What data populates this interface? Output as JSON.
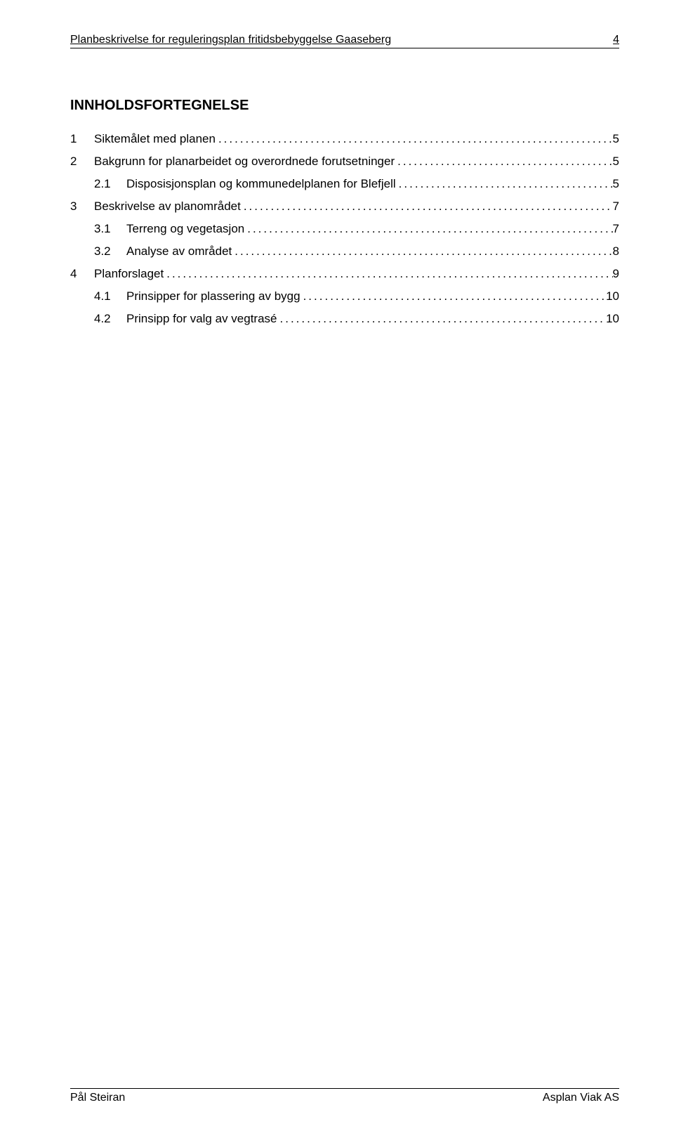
{
  "header": {
    "title": "Planbeskrivelse for reguleringsplan fritidsbebyggelse Gaaseberg",
    "page_number": "4"
  },
  "toc": {
    "title": "INNHOLDSFORTEGNELSE",
    "entries": [
      {
        "level": 1,
        "number": "1",
        "label": "Siktemålet med planen",
        "page": "5"
      },
      {
        "level": 1,
        "number": "2",
        "label": "Bakgrunn for planarbeidet og overordnede forutsetninger",
        "page": "5"
      },
      {
        "level": 2,
        "number": "2.1",
        "label": "Disposisjonsplan og kommunedelplanen for Blefjell",
        "page": "5"
      },
      {
        "level": 1,
        "number": "3",
        "label": "Beskrivelse av planområdet",
        "page": "7"
      },
      {
        "level": 2,
        "number": "3.1",
        "label": "Terreng og vegetasjon",
        "page": "7"
      },
      {
        "level": 2,
        "number": "3.2",
        "label": "Analyse av området",
        "page": "8"
      },
      {
        "level": 1,
        "number": "4",
        "label": "Planforslaget",
        "page": "9"
      },
      {
        "level": 2,
        "number": "4.1",
        "label": "Prinsipper for plassering av bygg",
        "page": "10"
      },
      {
        "level": 2,
        "number": "4.2",
        "label": "Prinsipp for valg av vegtrasé",
        "page": "10"
      }
    ]
  },
  "footer": {
    "left": "Pål Steiran",
    "right": "Asplan Viak AS"
  },
  "colors": {
    "background": "#ffffff",
    "text": "#000000",
    "rule": "#000000"
  },
  "typography": {
    "body_font": "Arial",
    "header_fontsize": 16,
    "toc_title_fontsize": 20,
    "toc_entry_fontsize": 17,
    "footer_fontsize": 16
  },
  "leader_dots": "................................................................................................................................................................................................."
}
